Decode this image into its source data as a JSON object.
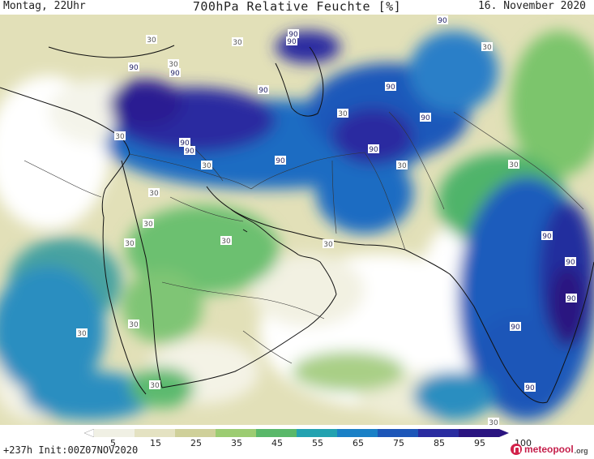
{
  "header": {
    "left": "Montag, 22Uhr",
    "center": "700hPa Relative Feuchte [%]",
    "right": "16. November 2020"
  },
  "footer": {
    "left": "+237h Init:00Z07NOV2020",
    "brand_main": "meteopool",
    "brand_tld": ".org"
  },
  "legend": {
    "ticks": [
      "5",
      "15",
      "25",
      "35",
      "45",
      "55",
      "65",
      "75",
      "85",
      "95",
      "100"
    ],
    "colors": [
      "#ffffff",
      "#f0f0e4",
      "#e4e2c2",
      "#cfd09a",
      "#9ccc72",
      "#5ab86a",
      "#23a2b0",
      "#1a80c6",
      "#1d56b8",
      "#2a2ca0",
      "#2a1480"
    ]
  },
  "contour_labels": [
    {
      "text": "90"
    },
    {
      "text": "90"
    },
    {
      "text": "90"
    },
    {
      "text": "90"
    },
    {
      "text": "90"
    },
    {
      "text": "90"
    },
    {
      "text": "90"
    },
    {
      "text": "90"
    },
    {
      "text": "90"
    },
    {
      "text": "90"
    },
    {
      "text": "90"
    },
    {
      "text": "90"
    },
    {
      "text": "90"
    },
    {
      "text": "90"
    },
    {
      "text": "90"
    },
    {
      "text": "90"
    },
    {
      "text": "90"
    },
    {
      "text": "30"
    },
    {
      "text": "30"
    },
    {
      "text": "30"
    },
    {
      "text": "30"
    },
    {
      "text": "30"
    },
    {
      "text": "30"
    },
    {
      "text": "30"
    },
    {
      "text": "30"
    },
    {
      "text": "30"
    },
    {
      "text": "30"
    },
    {
      "text": "30"
    },
    {
      "text": "30"
    },
    {
      "text": "30"
    },
    {
      "text": "30"
    },
    {
      "text": "30"
    },
    {
      "text": "30"
    },
    {
      "text": "30"
    },
    {
      "text": "30"
    }
  ]
}
